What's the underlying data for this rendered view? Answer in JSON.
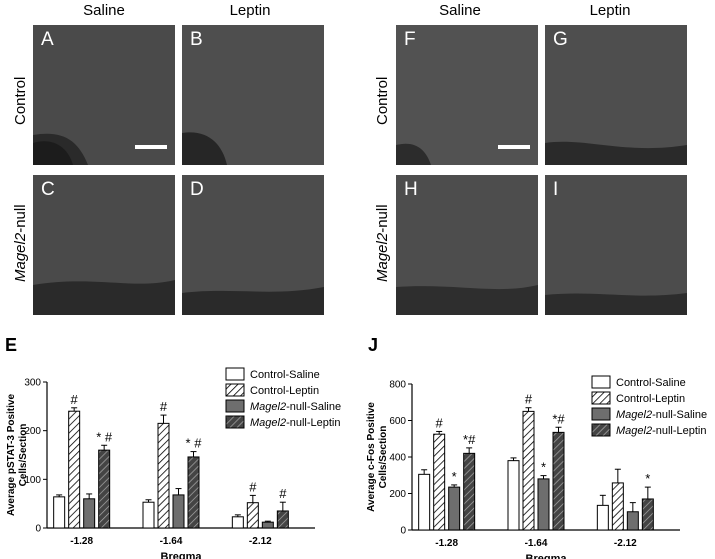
{
  "image_panels": {
    "col_headers": [
      "Saline",
      "Leptin",
      "Saline",
      "Leptin"
    ],
    "row_headers": [
      {
        "italic": "",
        "rest": "Control"
      },
      {
        "italic": "Magel2",
        "rest": "-null"
      },
      {
        "italic": "",
        "rest": "Control"
      },
      {
        "italic": "Magel2",
        "rest": "-null"
      }
    ],
    "letters": [
      "A",
      "B",
      "C",
      "D",
      "F",
      "G",
      "H",
      "I"
    ]
  },
  "chart_data": [
    {
      "panel_letter": "E",
      "type": "bar",
      "categories": [
        "-1.28",
        "-1.64",
        "-2.12"
      ],
      "series": [
        {
          "name": "Control-Saline",
          "italic": "",
          "suffix": "Control-Saline",
          "values": [
            64,
            53,
            23
          ],
          "errors": [
            4,
            5,
            4
          ],
          "pattern": "white"
        },
        {
          "name": "Control-Leptin",
          "italic": "",
          "suffix": "Control-Leptin",
          "values": [
            240,
            215,
            52
          ],
          "errors": [
            7,
            17,
            15
          ],
          "pattern": "hatch-light"
        },
        {
          "name": "Magel2-null-Saline",
          "italic": "Magel2",
          "suffix": "-null-Saline",
          "values": [
            60,
            68,
            12
          ],
          "errors": [
            10,
            13,
            2
          ],
          "pattern": "gray"
        },
        {
          "name": "Magel2-null-Leptin",
          "italic": "Magel2",
          "suffix": "-null-Leptin",
          "values": [
            160,
            146,
            35
          ],
          "errors": [
            10,
            11,
            18
          ],
          "pattern": "hatch-dark"
        }
      ],
      "annotations": [
        {
          "category": 0,
          "series": 1,
          "text": "#"
        },
        {
          "category": 0,
          "series": 3,
          "text": "* #"
        },
        {
          "category": 1,
          "series": 1,
          "text": "#"
        },
        {
          "category": 1,
          "series": 3,
          "text": "* #"
        },
        {
          "category": 2,
          "series": 1,
          "text": "#"
        },
        {
          "category": 2,
          "series": 3,
          "text": "#"
        }
      ],
      "ylabel_lines": [
        "Average pSTAT-3 Positive",
        "Cells/Section"
      ],
      "xlabel": "Bregma",
      "ylim": [
        0,
        300
      ],
      "yticks": [
        0,
        100,
        200,
        300
      ]
    },
    {
      "panel_letter": "J",
      "type": "bar",
      "categories": [
        "-1.28",
        "-1.64",
        "-2.12"
      ],
      "series": [
        {
          "name": "Control-Saline",
          "italic": "",
          "suffix": "Control-Saline",
          "values": [
            305,
            380,
            135
          ],
          "errors": [
            25,
            15,
            55
          ],
          "pattern": "white"
        },
        {
          "name": "Control-Leptin",
          "italic": "",
          "suffix": "Control-Leptin",
          "values": [
            525,
            650,
            258
          ],
          "errors": [
            15,
            20,
            75
          ],
          "pattern": "hatch-light"
        },
        {
          "name": "Magel2-null-Saline",
          "italic": "Magel2",
          "suffix": "-null-Saline",
          "values": [
            235,
            280,
            100
          ],
          "errors": [
            12,
            18,
            50
          ],
          "pattern": "gray"
        },
        {
          "name": "Magel2-null-Leptin",
          "italic": "Magel2",
          "suffix": "-null-Leptin",
          "values": [
            420,
            535,
            170
          ],
          "errors": [
            30,
            28,
            65
          ],
          "pattern": "hatch-dark"
        }
      ],
      "annotations": [
        {
          "category": 0,
          "series": 1,
          "text": "#"
        },
        {
          "category": 0,
          "series": 2,
          "text": "*"
        },
        {
          "category": 0,
          "series": 3,
          "text": "*#"
        },
        {
          "category": 1,
          "series": 1,
          "text": "#"
        },
        {
          "category": 1,
          "series": 2,
          "text": "*"
        },
        {
          "category": 1,
          "series": 3,
          "text": "*#"
        },
        {
          "category": 2,
          "series": 3,
          "text": "*"
        }
      ],
      "ylabel_lines": [
        "Average c-Fos Positive",
        "Cells/Section"
      ],
      "xlabel": "Bregma",
      "ylim": [
        0,
        800
      ],
      "yticks": [
        0,
        200,
        400,
        600,
        800
      ]
    }
  ]
}
